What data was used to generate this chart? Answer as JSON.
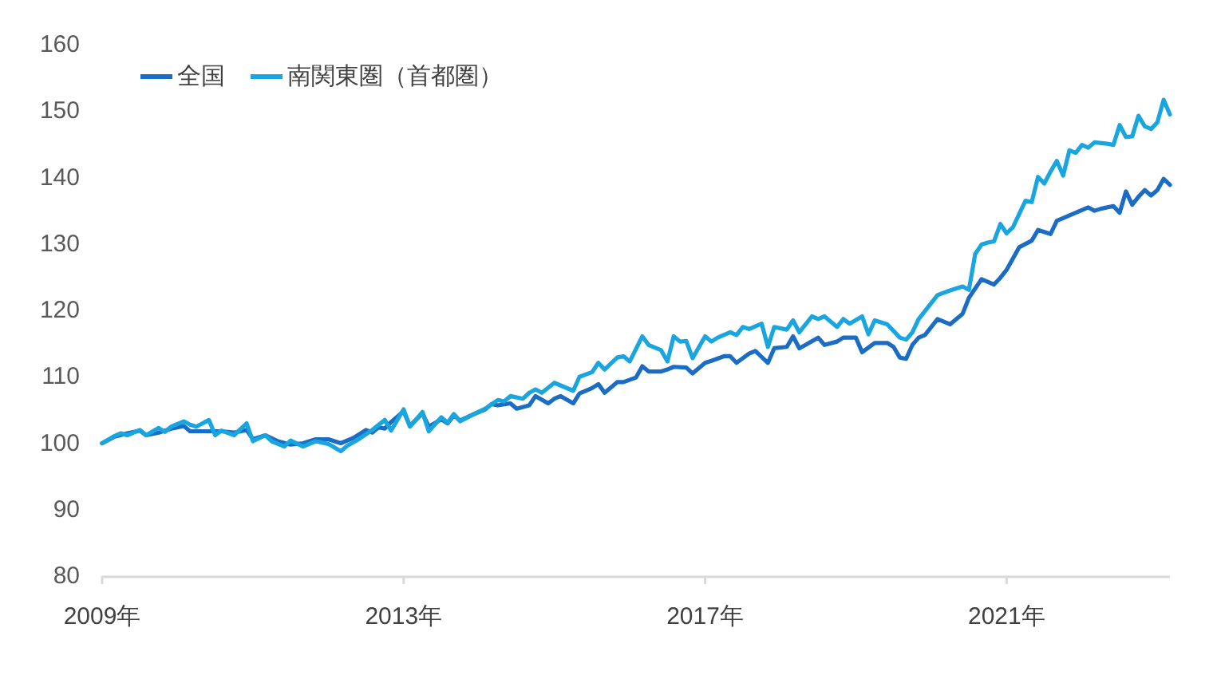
{
  "chart_data": {
    "type": "line",
    "series": [
      {
        "name": "全国",
        "color": "#1a6cc4",
        "x": [
          "2009-01",
          "2009-03",
          "2009-05",
          "2009-07",
          "2009-08",
          "2009-10",
          "2009-12",
          "2010-02",
          "2010-03",
          "2010-06",
          "2010-08",
          "2010-10",
          "2010-12",
          "2011-01",
          "2011-03",
          "2011-05",
          "2011-07",
          "2011-09",
          "2011-11",
          "2012-01",
          "2012-03",
          "2012-05",
          "2012-07",
          "2012-08",
          "2012-09",
          "2012-10",
          "2012-11",
          "2013-01",
          "2013-02",
          "2013-04",
          "2013-05",
          "2013-07",
          "2013-08",
          "2013-09",
          "2013-10",
          "2013-12",
          "2014-02",
          "2014-03",
          "2014-04",
          "2014-06",
          "2014-07",
          "2014-09",
          "2014-10",
          "2014-12",
          "2015-01",
          "2015-02",
          "2015-04",
          "2015-05",
          "2015-07",
          "2015-08",
          "2015-09",
          "2015-11",
          "2015-12",
          "2016-02",
          "2016-03",
          "2016-04",
          "2016-06",
          "2016-07",
          "2016-08",
          "2016-10",
          "2016-11",
          "2017-01",
          "2017-02",
          "2017-04",
          "2017-05",
          "2017-06",
          "2017-08",
          "2017-09",
          "2017-11",
          "2017-12",
          "2018-02",
          "2018-03",
          "2018-04",
          "2018-05",
          "2018-07",
          "2018-08",
          "2018-10",
          "2018-11",
          "2019-01",
          "2019-02",
          "2019-04",
          "2019-06",
          "2019-07",
          "2019-08",
          "2019-09",
          "2019-10",
          "2019-11",
          "2019-12",
          "2020-02",
          "2020-04",
          "2020-06",
          "2020-07",
          "2020-09",
          "2020-11",
          "2020-12",
          "2021-01",
          "2021-03",
          "2021-05",
          "2021-06",
          "2021-08",
          "2021-09",
          "2021-10",
          "2021-12",
          "2022-02",
          "2022-03",
          "2022-04",
          "2022-06",
          "2022-07",
          "2022-08",
          "2022-09",
          "2022-10",
          "2022-11",
          "2022-12",
          "2023-01",
          "2023-02",
          "2023-03"
        ],
        "values": [
          100.0,
          101.0,
          101.5,
          101.9,
          101.2,
          101.6,
          102.2,
          102.6,
          101.8,
          101.8,
          101.8,
          101.6,
          102.0,
          100.6,
          101.2,
          100.3,
          99.8,
          100.0,
          100.6,
          100.6,
          100.0,
          100.8,
          102.0,
          101.6,
          102.4,
          102.2,
          103.2,
          104.8,
          102.6,
          104.5,
          102.5,
          103.6,
          103.0,
          104.2,
          103.4,
          104.3,
          105.1,
          105.9,
          105.7,
          106.0,
          105.2,
          105.7,
          107.1,
          106.0,
          106.7,
          107.1,
          106.0,
          107.5,
          108.3,
          108.9,
          107.6,
          109.2,
          109.2,
          109.9,
          111.6,
          110.8,
          110.8,
          111.1,
          111.5,
          111.4,
          110.5,
          112.1,
          112.4,
          113.1,
          113.1,
          112.1,
          113.5,
          113.9,
          112.1,
          114.3,
          114.5,
          116.1,
          114.3,
          114.8,
          115.9,
          114.8,
          115.3,
          115.9,
          115.9,
          113.7,
          115.1,
          115.1,
          114.5,
          112.9,
          112.7,
          114.8,
          115.9,
          116.3,
          118.7,
          117.9,
          119.5,
          121.9,
          124.7,
          123.9,
          124.9,
          126.1,
          129.5,
          130.5,
          132.1,
          131.5,
          133.5,
          133.9,
          134.7,
          135.5,
          135.0,
          135.3,
          135.7,
          134.7,
          137.9,
          135.9,
          137.1,
          138.1,
          137.3,
          138.1,
          139.8,
          138.9
        ]
      },
      {
        "name": "南関東圏（首都圏）",
        "color": "#19a5df",
        "x": [
          "2009-01",
          "2009-03",
          "2009-04",
          "2009-05",
          "2009-07",
          "2009-08",
          "2009-10",
          "2009-11",
          "2009-12",
          "2010-02",
          "2010-03",
          "2010-04",
          "2010-06",
          "2010-07",
          "2010-08",
          "2010-10",
          "2010-12",
          "2011-01",
          "2011-03",
          "2011-04",
          "2011-06",
          "2011-07",
          "2011-09",
          "2011-11",
          "2012-01",
          "2012-03",
          "2012-04",
          "2012-06",
          "2012-08",
          "2012-10",
          "2012-11",
          "2013-01",
          "2013-02",
          "2013-04",
          "2013-05",
          "2013-07",
          "2013-08",
          "2013-09",
          "2013-10",
          "2013-12",
          "2014-02",
          "2014-04",
          "2014-05",
          "2014-06",
          "2014-08",
          "2014-09",
          "2014-10",
          "2014-11",
          "2015-01",
          "2015-04",
          "2015-05",
          "2015-07",
          "2015-08",
          "2015-09",
          "2015-11",
          "2015-12",
          "2016-01",
          "2016-03",
          "2016-04",
          "2016-06",
          "2016-07",
          "2016-08",
          "2016-09",
          "2016-10",
          "2016-11",
          "2017-01",
          "2017-02",
          "2017-03",
          "2017-05",
          "2017-06",
          "2017-07",
          "2017-08",
          "2017-10",
          "2017-11",
          "2017-12",
          "2018-02",
          "2018-03",
          "2018-04",
          "2018-06",
          "2018-07",
          "2018-08",
          "2018-10",
          "2018-11",
          "2018-12",
          "2019-02",
          "2019-03",
          "2019-04",
          "2019-06",
          "2019-08",
          "2019-09",
          "2019-10",
          "2019-11",
          "2019-12",
          "2020-02",
          "2020-04",
          "2020-06",
          "2020-07",
          "2020-08",
          "2020-09",
          "2020-10",
          "2020-11",
          "2020-12",
          "2021-01",
          "2021-02",
          "2021-04",
          "2021-05",
          "2021-06",
          "2021-07",
          "2021-08",
          "2021-09",
          "2021-10",
          "2021-11",
          "2021-12",
          "2022-01",
          "2022-02",
          "2022-03",
          "2022-05",
          "2022-06",
          "2022-07",
          "2022-08",
          "2022-09",
          "2022-10",
          "2022-11",
          "2022-12",
          "2023-01",
          "2023-02",
          "2023-03"
        ],
        "values": [
          100.0,
          101.1,
          101.5,
          101.2,
          102.0,
          101.2,
          102.3,
          101.7,
          102.5,
          103.3,
          102.8,
          102.5,
          103.5,
          101.2,
          101.9,
          101.2,
          103.0,
          100.3,
          101.2,
          100.3,
          99.5,
          100.4,
          99.5,
          100.3,
          99.9,
          98.8,
          99.6,
          100.7,
          102.0,
          103.5,
          101.9,
          105.1,
          102.5,
          104.7,
          101.8,
          103.9,
          103.1,
          104.4,
          103.3,
          104.3,
          105.2,
          106.5,
          106.3,
          107.1,
          106.7,
          107.6,
          108.1,
          107.6,
          109.1,
          107.9,
          110.0,
          110.7,
          112.1,
          111.1,
          112.9,
          113.1,
          112.3,
          116.1,
          114.8,
          114.0,
          112.3,
          116.1,
          115.3,
          115.4,
          112.8,
          116.1,
          115.3,
          115.9,
          116.7,
          116.3,
          117.5,
          117.2,
          118.0,
          114.5,
          117.5,
          117.1,
          118.5,
          116.7,
          119.1,
          118.7,
          119.1,
          117.5,
          118.7,
          118.0,
          119.1,
          116.4,
          118.5,
          117.9,
          115.9,
          115.6,
          116.7,
          118.7,
          119.9,
          122.3,
          123.0,
          123.6,
          123.1,
          128.5,
          129.9,
          130.2,
          130.4,
          133.0,
          131.6,
          132.5,
          136.5,
          136.3,
          140.1,
          139.1,
          140.9,
          142.5,
          140.3,
          144.1,
          143.7,
          144.9,
          144.5,
          145.3,
          145.1,
          144.9,
          147.9,
          146.1,
          146.2,
          149.3,
          147.7,
          147.3,
          148.3,
          151.7,
          149.5
        ]
      }
    ],
    "xlim": [
      "2009-01",
      "2023-03"
    ],
    "xticks": [
      {
        "value": "2009-01",
        "label": "2009年"
      },
      {
        "value": "2013-01",
        "label": "2013年"
      },
      {
        "value": "2017-01",
        "label": "2017年"
      },
      {
        "value": "2021-01",
        "label": "2021年"
      }
    ],
    "ylim": [
      80,
      160
    ],
    "yticks": [
      80,
      90,
      100,
      110,
      120,
      130,
      140,
      150,
      160
    ],
    "legend": "top left",
    "line_style": "solid"
  }
}
